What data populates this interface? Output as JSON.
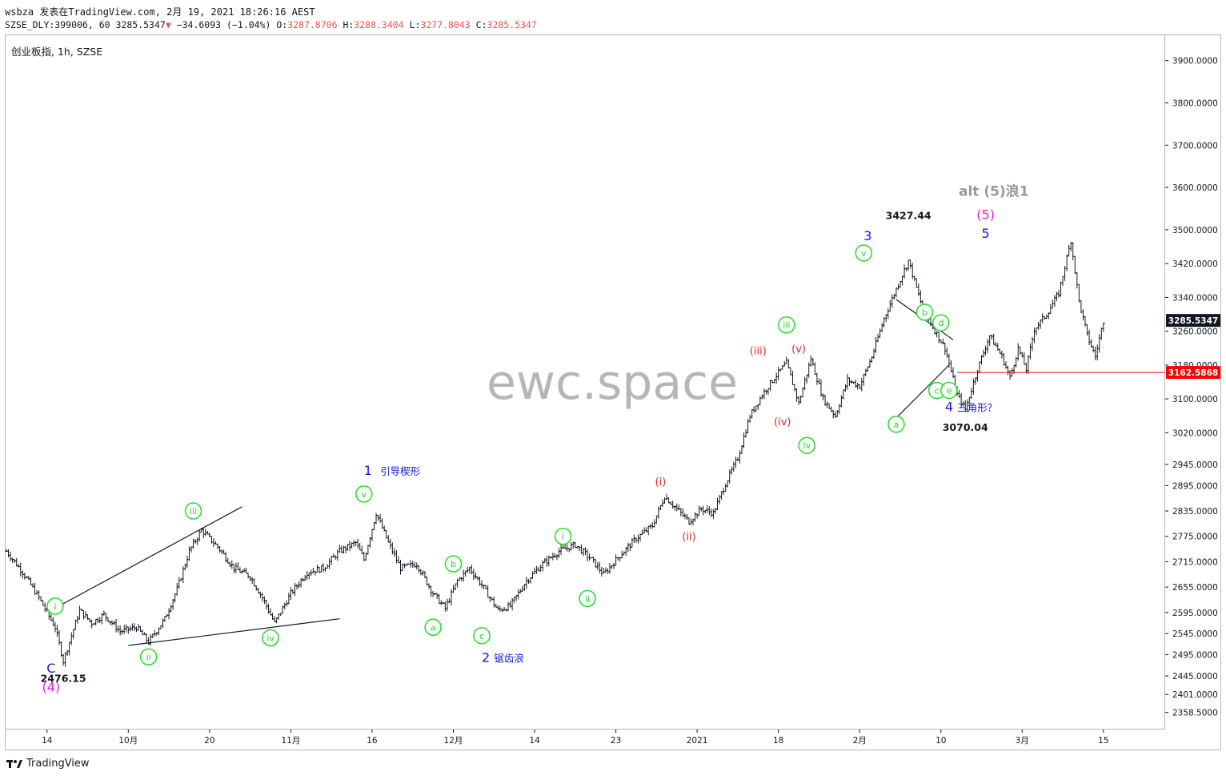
{
  "header": {
    "line1": "wsbza 发表在TradingView.com, 2月 19, 2021 18:26:16 AEST",
    "symbol_code": "SZSE_DLY:399006, 60",
    "last": "3285.5347",
    "change": "−34.6093 (−1.04%)",
    "o_label": "O:",
    "o": "3287.8706",
    "h_label": "H:",
    "h": "3288.3404",
    "l_label": "L:",
    "l": "3277.8043",
    "c_label": "C:",
    "c": "3285.5347"
  },
  "symbol_title": "创业板指, 1h, SZSE",
  "watermark": "ewc.space",
  "footer": {
    "brand": "TradingView"
  },
  "colors": {
    "green_label": "#22dd22",
    "red_label": "#e8222b",
    "blue_label": "#1717e0",
    "magenta_label": "#e020e0",
    "gray_label": "#999999",
    "candles": "#131722",
    "price_marker_current": "#131722",
    "price_marker_line": "#ff0000"
  },
  "price_markers": [
    {
      "value": "3285.5347",
      "style": "dark"
    },
    {
      "value": "3162.5868",
      "style": "red"
    }
  ],
  "chart_data": {
    "type": "candlestick",
    "title": "创业板指, 1h, SZSE",
    "y_axis_ticks": [
      "3900.0000",
      "3800.0000",
      "3700.0000",
      "3600.0000",
      "3500.0000",
      "3420.0000",
      "3340.0000",
      "3260.0000",
      "3180.0000",
      "3100.0000",
      "3020.0000",
      "2945.0000",
      "2895.0000",
      "2835.0000",
      "2775.0000",
      "2715.0000",
      "2655.0000",
      "2595.0000",
      "2545.0000",
      "2495.0000",
      "2445.0000",
      "2401.0000",
      "2358.5000"
    ],
    "x_axis_ticks": [
      "14",
      "10月",
      "20",
      "11月",
      "16",
      "12月",
      "14",
      "23",
      "2021",
      "18",
      "2月",
      "10",
      "3月",
      "15"
    ],
    "ylim": [
      2320,
      3960
    ],
    "price_points": [
      {
        "t": 0,
        "p": 2740
      },
      {
        "t": 4,
        "p": 2690
      },
      {
        "t": 8,
        "p": 2630
      },
      {
        "t": 12,
        "p": 2560
      },
      {
        "t": 14,
        "p": 2480
      },
      {
        "t": 16,
        "p": 2540
      },
      {
        "t": 18,
        "p": 2600
      },
      {
        "t": 21,
        "p": 2570
      },
      {
        "t": 24,
        "p": 2590
      },
      {
        "t": 28,
        "p": 2550
      },
      {
        "t": 32,
        "p": 2560
      },
      {
        "t": 35,
        "p": 2525
      },
      {
        "t": 39,
        "p": 2580
      },
      {
        "t": 42,
        "p": 2650
      },
      {
        "t": 45,
        "p": 2740
      },
      {
        "t": 48,
        "p": 2790
      },
      {
        "t": 52,
        "p": 2750
      },
      {
        "t": 56,
        "p": 2700
      },
      {
        "t": 60,
        "p": 2680
      },
      {
        "t": 63,
        "p": 2630
      },
      {
        "t": 66,
        "p": 2570
      },
      {
        "t": 70,
        "p": 2640
      },
      {
        "t": 74,
        "p": 2690
      },
      {
        "t": 78,
        "p": 2700
      },
      {
        "t": 82,
        "p": 2740
      },
      {
        "t": 86,
        "p": 2760
      },
      {
        "t": 88,
        "p": 2720
      },
      {
        "t": 91,
        "p": 2830
      },
      {
        "t": 94,
        "p": 2760
      },
      {
        "t": 97,
        "p": 2700
      },
      {
        "t": 101,
        "p": 2710
      },
      {
        "t": 105,
        "p": 2640
      },
      {
        "t": 108,
        "p": 2605
      },
      {
        "t": 111,
        "p": 2670
      },
      {
        "t": 114,
        "p": 2700
      },
      {
        "t": 117,
        "p": 2660
      },
      {
        "t": 121,
        "p": 2600
      },
      {
        "t": 124,
        "p": 2610
      },
      {
        "t": 128,
        "p": 2670
      },
      {
        "t": 132,
        "p": 2710
      },
      {
        "t": 136,
        "p": 2740
      },
      {
        "t": 140,
        "p": 2755
      },
      {
        "t": 144,
        "p": 2720
      },
      {
        "t": 147,
        "p": 2685
      },
      {
        "t": 151,
        "p": 2730
      },
      {
        "t": 155,
        "p": 2770
      },
      {
        "t": 159,
        "p": 2800
      },
      {
        "t": 162,
        "p": 2870
      },
      {
        "t": 165,
        "p": 2840
      },
      {
        "t": 168,
        "p": 2810
      },
      {
        "t": 171,
        "p": 2840
      },
      {
        "t": 174,
        "p": 2830
      },
      {
        "t": 177,
        "p": 2900
      },
      {
        "t": 180,
        "p": 2960
      },
      {
        "t": 183,
        "p": 3060
      },
      {
        "t": 186,
        "p": 3110
      },
      {
        "t": 189,
        "p": 3150
      },
      {
        "t": 192,
        "p": 3185
      },
      {
        "t": 195,
        "p": 3090
      },
      {
        "t": 198,
        "p": 3195
      },
      {
        "t": 201,
        "p": 3100
      },
      {
        "t": 204,
        "p": 3060
      },
      {
        "t": 207,
        "p": 3145
      },
      {
        "t": 210,
        "p": 3130
      },
      {
        "t": 213,
        "p": 3200
      },
      {
        "t": 216,
        "p": 3290
      },
      {
        "t": 219,
        "p": 3360
      },
      {
        "t": 222,
        "p": 3427
      },
      {
        "t": 225,
        "p": 3330
      },
      {
        "t": 228,
        "p": 3270
      },
      {
        "t": 231,
        "p": 3220
      },
      {
        "t": 234,
        "p": 3110
      },
      {
        "t": 236,
        "p": 3075
      },
      {
        "t": 239,
        "p": 3170
      },
      {
        "t": 242,
        "p": 3250
      },
      {
        "t": 245,
        "p": 3200
      },
      {
        "t": 247,
        "p": 3150
      },
      {
        "t": 249,
        "p": 3220
      },
      {
        "t": 251,
        "p": 3170
      },
      {
        "t": 253,
        "p": 3265
      },
      {
        "t": 256,
        "p": 3300
      },
      {
        "t": 259,
        "p": 3350
      },
      {
        "t": 262,
        "p": 3475
      },
      {
        "t": 264,
        "p": 3330
      },
      {
        "t": 266,
        "p": 3250
      },
      {
        "t": 268,
        "p": 3200
      },
      {
        "t": 270,
        "p": 3285
      }
    ],
    "price_labels": [
      {
        "text": "2476.15",
        "t": 14,
        "p": 2476
      },
      {
        "text": "3427.44",
        "t": 222,
        "p": 3427
      },
      {
        "text": "3070.04",
        "t": 236,
        "p": 3070
      }
    ]
  },
  "wave_labels": [
    {
      "text": "i",
      "color": "green_label",
      "circle": true,
      "t": 12,
      "p": 2610
    },
    {
      "text": "ii",
      "color": "green_label",
      "circle": true,
      "t": 35,
      "p": 2490
    },
    {
      "text": "iii",
      "color": "green_label",
      "circle": true,
      "t": 46,
      "p": 2835
    },
    {
      "text": "iv",
      "color": "green_label",
      "circle": true,
      "t": 65,
      "p": 2535
    },
    {
      "text": "v",
      "color": "green_label",
      "circle": true,
      "t": 88,
      "p": 2875
    },
    {
      "text": "a",
      "color": "green_label",
      "circle": true,
      "t": 105,
      "p": 2560
    },
    {
      "text": "b",
      "color": "green_label",
      "circle": true,
      "t": 110,
      "p": 2710
    },
    {
      "text": "c",
      "color": "green_label",
      "circle": true,
      "t": 117,
      "p": 2540
    },
    {
      "text": "i",
      "color": "green_label",
      "circle": true,
      "t": 137,
      "p": 2775
    },
    {
      "text": "ii",
      "color": "green_label",
      "circle": true,
      "t": 143,
      "p": 2628
    },
    {
      "text": "iii",
      "color": "green_label",
      "circle": true,
      "t": 192,
      "p": 3275
    },
    {
      "text": "iv",
      "color": "green_label",
      "circle": true,
      "t": 197,
      "p": 2990
    },
    {
      "text": "v",
      "color": "green_label",
      "circle": true,
      "t": 211,
      "p": 3445
    },
    {
      "text": "a",
      "color": "green_label",
      "circle": true,
      "t": 219,
      "p": 3040
    },
    {
      "text": "b",
      "color": "green_label",
      "circle": true,
      "t": 226,
      "p": 3305
    },
    {
      "text": "c",
      "color": "green_label",
      "circle": true,
      "t": 229,
      "p": 3120
    },
    {
      "text": "d",
      "color": "green_label",
      "circle": true,
      "t": 230,
      "p": 3280
    },
    {
      "text": "e",
      "color": "green_label",
      "circle": true,
      "t": 232,
      "p": 3120
    },
    {
      "text": "(i)",
      "color": "red_label",
      "circle": false,
      "t": 161,
      "p": 2905
    },
    {
      "text": "(ii)",
      "color": "red_label",
      "circle": false,
      "t": 168,
      "p": 2775
    },
    {
      "text": "(iii)",
      "color": "red_label",
      "circle": false,
      "t": 185,
      "p": 3215
    },
    {
      "text": "(iv)",
      "color": "red_label",
      "circle": false,
      "t": 191,
      "p": 3047
    },
    {
      "text": "(v)",
      "color": "red_label",
      "circle": false,
      "t": 195,
      "p": 3220
    },
    {
      "text": "C",
      "color": "blue_label",
      "circle": false,
      "t": 11,
      "p": 2462
    },
    {
      "text": "(4)",
      "color": "magenta_label",
      "circle": false,
      "t": 11,
      "p": 2418
    },
    {
      "text": "1",
      "color": "blue_label",
      "circle": false,
      "t": 89,
      "p": 2930
    },
    {
      "text": "2",
      "color": "blue_label",
      "circle": false,
      "t": 118,
      "p": 2488
    },
    {
      "text": "3",
      "color": "blue_label",
      "circle": false,
      "t": 212,
      "p": 3485
    },
    {
      "text": "4",
      "color": "blue_label",
      "circle": false,
      "t": 232,
      "p": 3080
    },
    {
      "text": "5",
      "color": "blue_label",
      "circle": false,
      "t": 241,
      "p": 3490
    },
    {
      "text": "(5)",
      "color": "magenta_label",
      "circle": false,
      "t": 241,
      "p": 3535
    },
    {
      "text": "alt (5)浪1",
      "color": "gray_label",
      "circle": false,
      "t": 243,
      "p": 3590
    }
  ],
  "annotations": [
    {
      "text": "引导楔形",
      "color": "blue_label",
      "t": 92,
      "p": 2930
    },
    {
      "text": "锯齿浪",
      "color": "blue_label",
      "t": 120,
      "p": 2488
    },
    {
      "text": "三角形？",
      "color": "blue_label",
      "t": 234,
      "p": 3080
    }
  ],
  "trendlines": [
    {
      "from": {
        "t": 11,
        "p": 2600
      },
      "to": {
        "t": 58,
        "p": 2845
      }
    },
    {
      "from": {
        "t": 30,
        "p": 2517
      },
      "to": {
        "t": 82,
        "p": 2580
      }
    },
    {
      "from": {
        "t": 219,
        "p": 3335
      },
      "to": {
        "t": 233,
        "p": 3240
      }
    },
    {
      "from": {
        "t": 219,
        "p": 3055
      },
      "to": {
        "t": 232,
        "p": 3180
      }
    }
  ]
}
